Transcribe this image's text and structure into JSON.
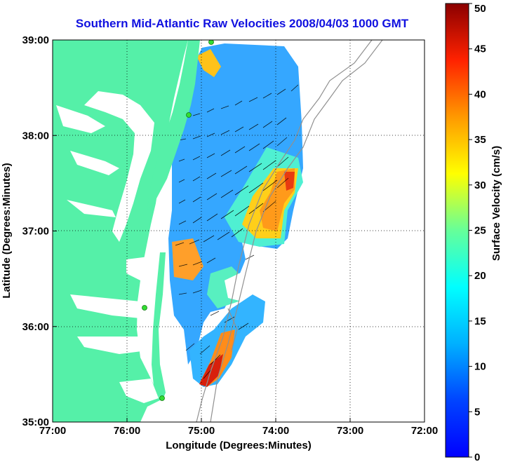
{
  "title": "Southern Mid-Atlantic Raw Velocities 2008/04/03 1000 GMT",
  "map": {
    "x_axis_label": "Longitude (Degrees:Minutes)",
    "y_axis_label": "Latitude (Degrees:Minutes)",
    "x_ticks": [
      "77:00",
      "76:00",
      "75:00",
      "74:00",
      "73:00",
      "72:00"
    ],
    "y_ticks": [
      "39:00",
      "38:00",
      "37:00",
      "36:00",
      "35:00"
    ],
    "x_range_deg_west": [
      77,
      72
    ],
    "y_range_deg_north": [
      35,
      39
    ],
    "land_color": "#55f0a8",
    "grid": "dotted",
    "colors": {
      "background": "#ffffff",
      "title": "#1010e0",
      "bathymetry_contour": "#909090",
      "station_marker": "#33dd33",
      "vector": "#000000"
    },
    "colorbar": {
      "label": "Surface Velocity (cm/s)",
      "ticks": [
        "0",
        "5",
        "10",
        "15",
        "20",
        "25",
        "30",
        "35",
        "40",
        "45",
        "50"
      ],
      "range": [
        0,
        50
      ],
      "colormap": "jet"
    }
  }
}
